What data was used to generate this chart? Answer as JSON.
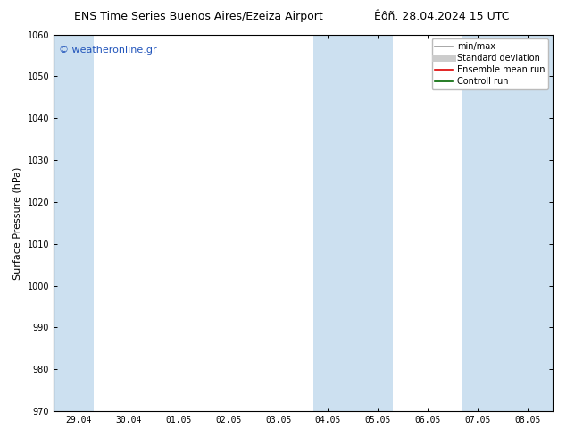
{
  "title_left": "ENS Time Series Buenos Aires/Ezeiza Airport",
  "title_right": "Êôñ. 28.04.2024 15 UTC",
  "ylabel": "Surface Pressure (hPa)",
  "ylim": [
    970,
    1060
  ],
  "yticks": [
    970,
    980,
    990,
    1000,
    1010,
    1020,
    1030,
    1040,
    1050,
    1060
  ],
  "xtick_labels": [
    "29.04",
    "30.04",
    "01.05",
    "02.05",
    "03.05",
    "04.05",
    "05.05",
    "06.05",
    "07.05",
    "08.05"
  ],
  "xtick_positions": [
    0,
    1,
    2,
    3,
    4,
    5,
    6,
    7,
    8,
    9
  ],
  "xlim": [
    -0.5,
    9.5
  ],
  "shaded_bands": [
    {
      "xmin": -0.5,
      "xmax": 0.3
    },
    {
      "xmin": 4.7,
      "xmax": 6.3
    },
    {
      "xmin": 7.7,
      "xmax": 9.5
    }
  ],
  "band_color": "#cce0f0",
  "watermark": "© weatheronline.gr",
  "watermark_color": "#2255bb",
  "legend_items": [
    {
      "label": "min/max",
      "color": "#999999",
      "lw": 1.2,
      "style": "solid"
    },
    {
      "label": "Standard deviation",
      "color": "#cccccc",
      "lw": 5,
      "style": "solid"
    },
    {
      "label": "Ensemble mean run",
      "color": "#dd0000",
      "lw": 1.2,
      "style": "solid"
    },
    {
      "label": "Controll run",
      "color": "#006600",
      "lw": 1.2,
      "style": "solid"
    }
  ],
  "bg_color": "#ffffff",
  "title_fontsize": 9,
  "tick_fontsize": 7,
  "ylabel_fontsize": 8,
  "watermark_fontsize": 8,
  "legend_fontsize": 7
}
